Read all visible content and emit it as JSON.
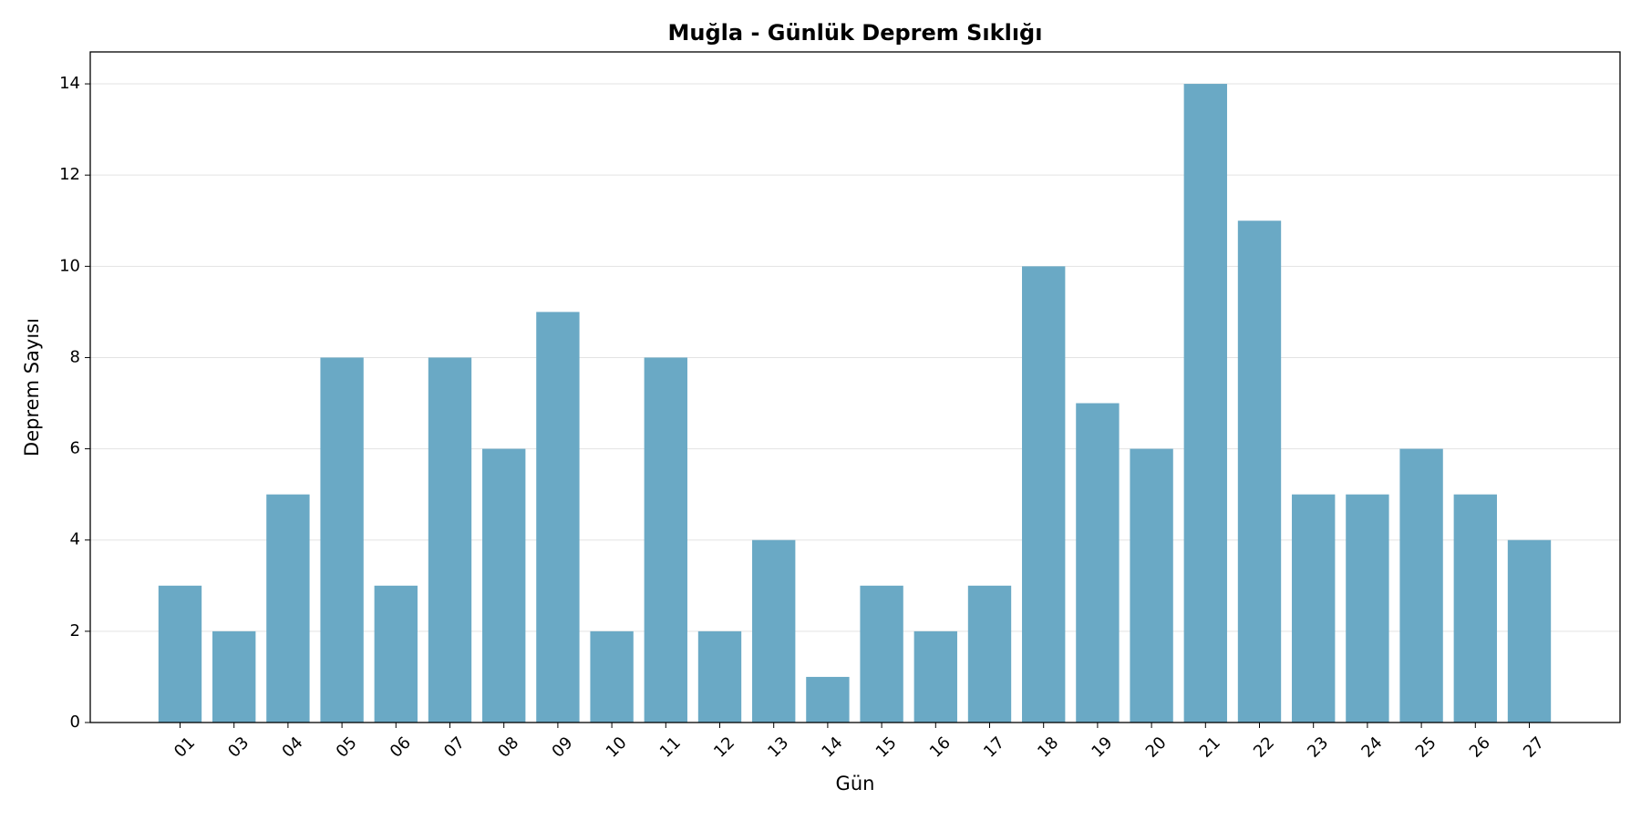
{
  "chart_data": {
    "type": "bar",
    "title": "Muğla - Günlük Deprem Sıklığı",
    "x_label": "Gün",
    "y_label": "Deprem Sayısı",
    "categories": [
      "01",
      "03",
      "04",
      "05",
      "06",
      "07",
      "08",
      "09",
      "10",
      "11",
      "12",
      "13",
      "14",
      "15",
      "16",
      "17",
      "18",
      "19",
      "20",
      "21",
      "22",
      "23",
      "24",
      "25",
      "26",
      "27"
    ],
    "values": [
      3,
      2,
      5,
      8,
      3,
      8,
      6,
      9,
      2,
      8,
      2,
      4,
      1,
      3,
      2,
      3,
      10,
      7,
      6,
      14,
      11,
      5,
      5,
      6,
      5,
      4
    ],
    "color": "#6aa9c5",
    "ylim": [
      0,
      14.7
    ],
    "yticks": [
      0,
      2,
      4,
      6,
      8,
      10,
      12,
      14
    ],
    "grid": true
  }
}
